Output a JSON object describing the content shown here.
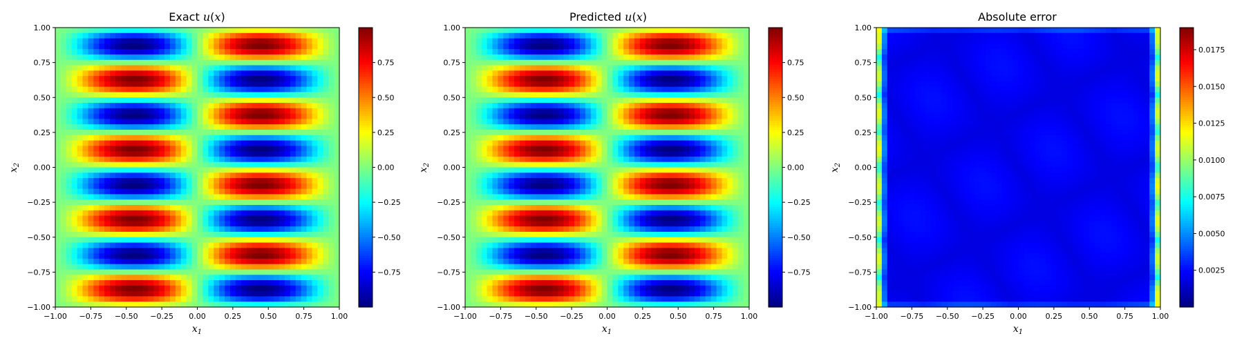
{
  "chart_data": [
    {
      "type": "heatmap",
      "title": "Exact u(x)",
      "xlabel": "x1",
      "ylabel": "x2",
      "xlim": [
        -1,
        1
      ],
      "ylim": [
        -1,
        1
      ],
      "x_ticks": [
        "−1.00",
        "−0.75",
        "−0.50",
        "−0.25",
        "0.00",
        "0.25",
        "0.50",
        "0.75",
        "1.00"
      ],
      "y_ticks": [
        "1.00",
        "0.75",
        "0.50",
        "0.25",
        "0.00",
        "−0.25",
        "−0.50",
        "−0.75",
        "−1.00"
      ],
      "field": "u(x1,x2) = sin(pi*x1) * sin(4*pi*x2) * (1 - x1^2)^0.5 (banded pattern, peaks near x1=±0.5)",
      "colormap": "jet",
      "colorbar": {
        "range": [
          -1,
          1
        ],
        "ticks": [
          "0.75",
          "0.50",
          "0.25",
          "0.00",
          "−0.25",
          "−0.50",
          "−0.75"
        ]
      }
    },
    {
      "type": "heatmap",
      "title": "Predicted u(x)",
      "xlabel": "x1",
      "ylabel": "x2",
      "xlim": [
        -1,
        1
      ],
      "ylim": [
        -1,
        1
      ],
      "x_ticks": [
        "−1.00",
        "−0.75",
        "−0.50",
        "−0.25",
        "0.00",
        "0.25",
        "0.50",
        "0.75",
        "1.00"
      ],
      "y_ticks": [
        "1.00",
        "0.75",
        "0.50",
        "0.25",
        "0.00",
        "−0.25",
        "−0.50",
        "−0.75",
        "−1.00"
      ],
      "colormap": "jet",
      "colorbar": {
        "range": [
          -1,
          1
        ],
        "ticks": [
          "0.75",
          "0.50",
          "0.25",
          "0.00",
          "−0.25",
          "−0.50",
          "−0.75"
        ]
      }
    },
    {
      "type": "heatmap",
      "title": "Absolute error",
      "xlabel": "x1",
      "ylabel": "x2",
      "xlim": [
        -1,
        1
      ],
      "ylim": [
        -1,
        1
      ],
      "x_ticks": [
        "−1.00",
        "−0.75",
        "−0.50",
        "−0.25",
        "0.00",
        "0.25",
        "0.50",
        "0.75",
        "1.00"
      ],
      "y_ticks": [
        "1.00",
        "0.75",
        "0.50",
        "0.25",
        "0.00",
        "−0.25",
        "−0.50",
        "−0.75",
        "−1.00"
      ],
      "colormap": "jet",
      "colorbar": {
        "range": [
          0,
          0.019
        ],
        "ticks": [
          "0.0175",
          "0.0150",
          "0.0125",
          "0.0100",
          "0.0075",
          "0.0050",
          "0.0025"
        ]
      }
    }
  ]
}
